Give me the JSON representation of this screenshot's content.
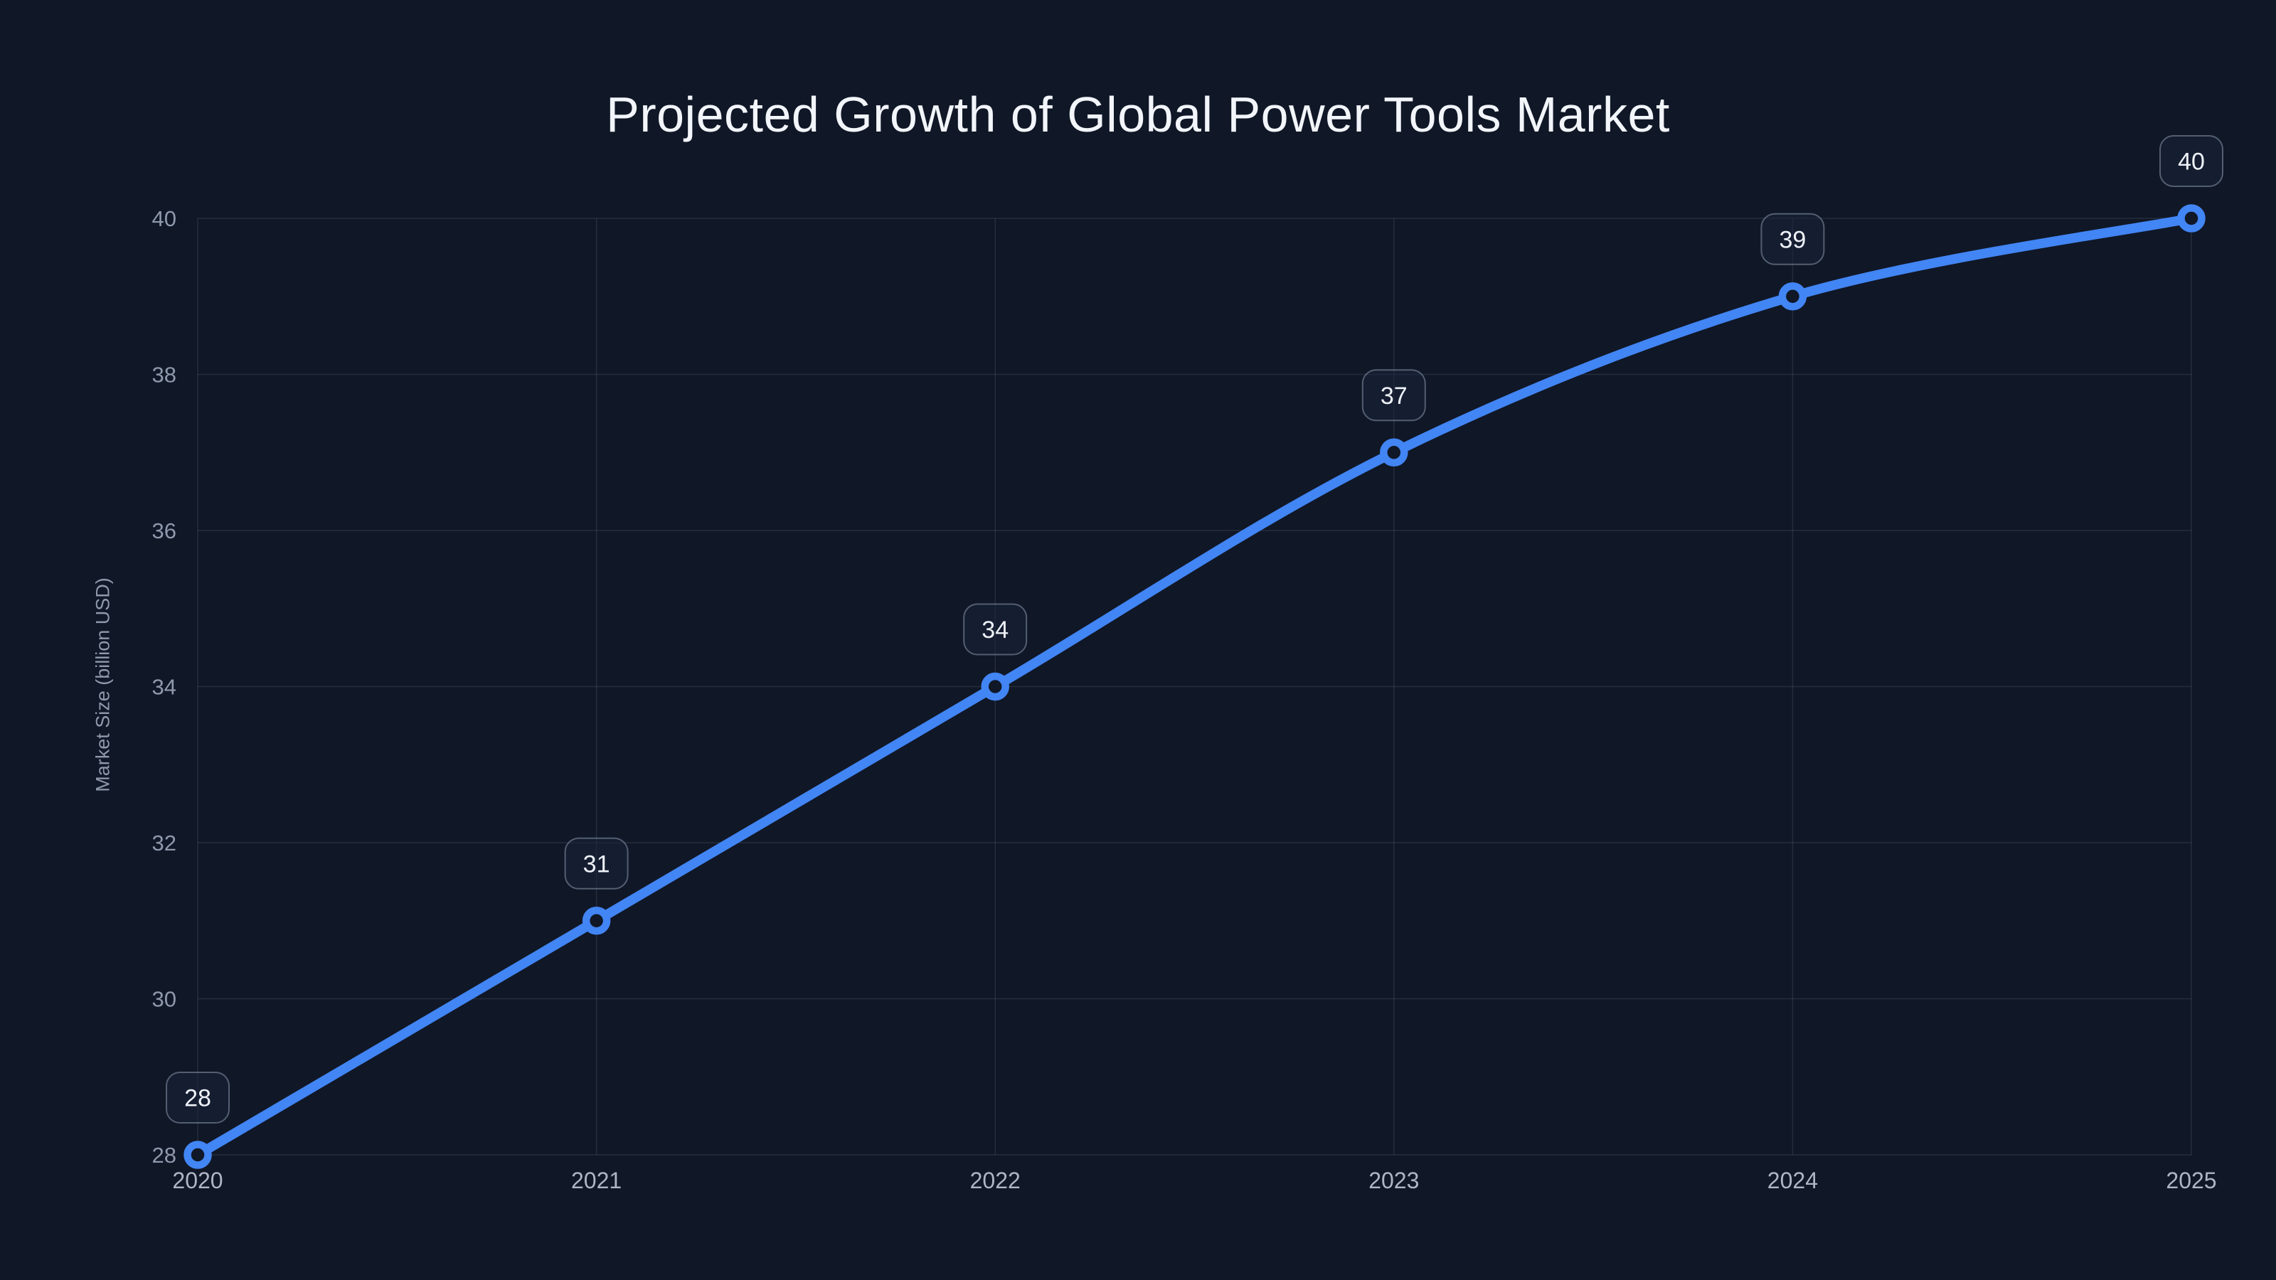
{
  "title": "Projected Growth of Global Power Tools Market",
  "chart_data": {
    "type": "line",
    "title": "Projected Growth of Global Power Tools Market",
    "x": [
      "2020",
      "2021",
      "2022",
      "2023",
      "2024",
      "2025"
    ],
    "series": [
      {
        "name": "Market Size",
        "values": [
          28,
          31,
          34,
          37,
          39,
          40
        ]
      }
    ],
    "point_labels": [
      "28",
      "31",
      "34",
      "37",
      "39",
      "40"
    ],
    "xlabel": "",
    "ylabel": "Market Size (billion USD)",
    "ylim": [
      28,
      40
    ],
    "yticks": [
      28,
      30,
      32,
      34,
      36,
      38,
      40
    ],
    "grid": "both",
    "legend": false,
    "line_style": "smooth",
    "marker": "open-circle"
  },
  "colors": {
    "background": "#101726",
    "line": "#4285f4",
    "grid": "rgba(148,163,184,0.16)",
    "title_text": "#f2f5fa",
    "y_tick_text": "#8e99ac",
    "x_tick_text": "#aeb6c6",
    "axis_title_text": "#8e99ac",
    "badge_fill": "rgba(26,35,58,0.55)",
    "badge_border": "rgba(148,163,184,0.5)",
    "badge_text": "#eef2f8"
  }
}
